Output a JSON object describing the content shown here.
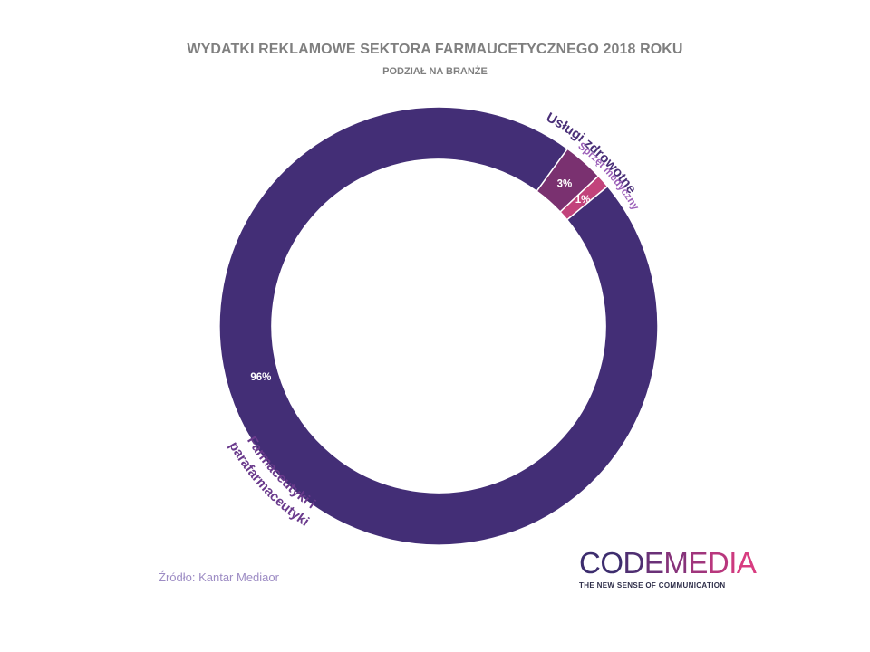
{
  "chart_data": {
    "type": "pie",
    "title": "WYDATKI REKLAMOWE SEKTORA FARMAUCETYCZNEGO 2018 ROKU",
    "subtitle": "PODZIAŁ NA BRANŻE",
    "donut": true,
    "slices": [
      {
        "label": "Usługi zdrowotne",
        "value": 3,
        "value_label": "3%",
        "color": "#7a3170"
      },
      {
        "label": "Sprzęt medyczny",
        "value": 1,
        "value_label": "1%",
        "color": "#c2437b"
      },
      {
        "label": "Farmaceutyki i parafarmaceutyki",
        "value": 96,
        "value_label": "96%",
        "color": "#432e76"
      }
    ]
  },
  "source": "Źródło: Kantar Mediaor",
  "logo": {
    "word": "CODEMEDIA",
    "letter_colors": [
      "#3d2d6e",
      "#3d2d6e",
      "#4f2f72",
      "#6a3177",
      "#86337a",
      "#a0357c",
      "#b8377d",
      "#cc3a7f",
      "#d83c80"
    ],
    "tagline": "THE NEW SENSE OF COMMUNICATION"
  }
}
